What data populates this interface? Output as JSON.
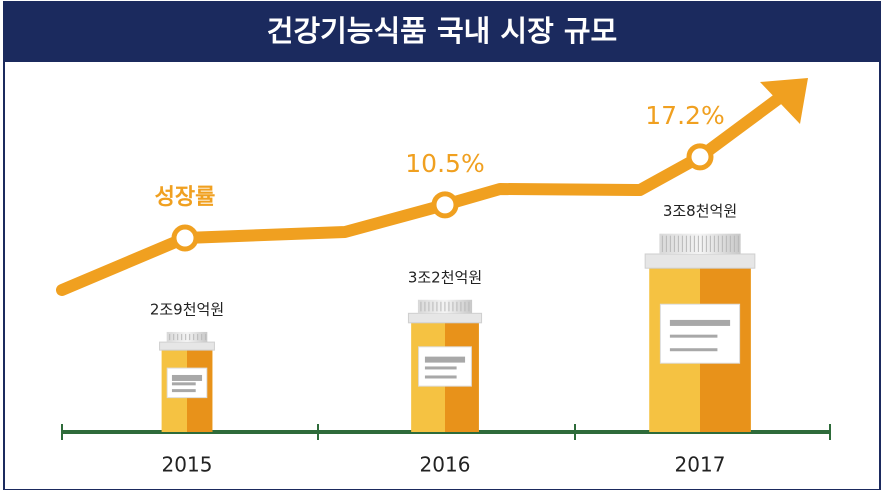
{
  "chart_data": {
    "type": "bar",
    "title": "건강기능식품 국내 시장 규모",
    "categories": [
      "2015",
      "2016",
      "2017"
    ],
    "values": [
      2.9,
      3.2,
      3.8
    ],
    "value_labels": [
      "2조9천억원",
      "3조2천억원",
      "3조8천억원"
    ],
    "color": "#f0a020",
    "growth": {
      "name": "성장률",
      "values": [
        null,
        10.5,
        17.2
      ],
      "value_labels": [
        null,
        "10.5%",
        "17.2%"
      ],
      "color": "#f0a020"
    }
  }
}
